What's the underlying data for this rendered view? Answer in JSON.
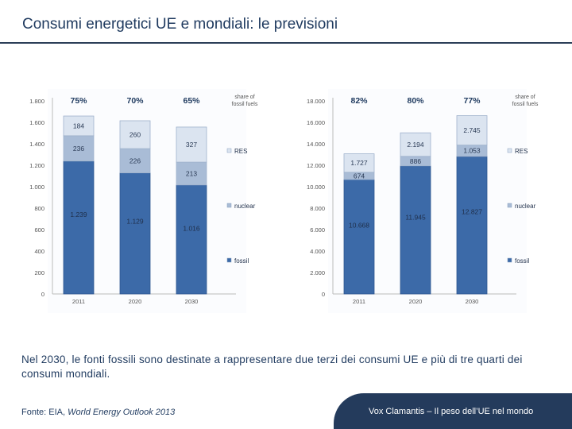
{
  "header": {
    "title": "Consumi energetici UE e mondiali: le previsioni"
  },
  "caption": "Nel 2030, le fonti fossili sono destinate a rappresentare due terzi dei consumi UE e più di tre quarti dei consumi mondiali.",
  "source": {
    "prefix": "Fonte: EIA, ",
    "italic": "World Energy Outlook 2013"
  },
  "footer": {
    "text": "Vox Clamantis – Il peso dell’UE nel mondo"
  },
  "colors": {
    "fossil": "#3c6aa8",
    "nuclear": "#a9bcd6",
    "res": "#dbe4f0",
    "title": "#1f3a5f",
    "footer_bg": "#243b5c"
  },
  "chart_data": [
    {
      "type": "bar",
      "stacked": true,
      "categories": [
        "2011",
        "2020",
        "2030"
      ],
      "series": [
        {
          "name": "fossil",
          "values": [
            1239,
            1129,
            1016
          ],
          "labels": [
            "1.239",
            "1.129",
            "1.016"
          ]
        },
        {
          "name": "nuclear",
          "values": [
            236,
            226,
            213
          ],
          "labels": [
            "236",
            "226",
            "213"
          ]
        },
        {
          "name": "RES",
          "values": [
            184,
            260,
            327
          ],
          "labels": [
            "184",
            "260",
            "327"
          ]
        }
      ],
      "share_title": [
        "share of",
        "fossil fuels"
      ],
      "share_of_fossil": [
        "75%",
        "70%",
        "65%"
      ],
      "yticks": [
        0,
        200,
        400,
        600,
        800,
        1000,
        1200,
        1400,
        1600,
        1800
      ],
      "ytick_labels": [
        "0",
        "200",
        "400",
        "600",
        "800",
        "1.000",
        "1.200",
        "1.400",
        "1.600",
        "1.800"
      ],
      "ylim": [
        0,
        1800
      ],
      "legend": [
        "RES",
        "nuclear",
        "fossil"
      ]
    },
    {
      "type": "bar",
      "stacked": true,
      "categories": [
        "2011",
        "2020",
        "2030"
      ],
      "series": [
        {
          "name": "fossil",
          "values": [
            10668,
            11945,
            12827
          ],
          "labels": [
            "10.668",
            "11.945",
            "12.827"
          ]
        },
        {
          "name": "nuclear",
          "values": [
            674,
            886,
            1053
          ],
          "labels": [
            "674",
            "886",
            "1.053"
          ]
        },
        {
          "name": "RES",
          "values": [
            1727,
            2194,
            2745
          ],
          "labels": [
            "1.727",
            "2.194",
            "2.745"
          ]
        }
      ],
      "share_title": [
        "share of",
        "fossil fuels"
      ],
      "share_of_fossil": [
        "82%",
        "80%",
        "77%"
      ],
      "yticks": [
        0,
        2000,
        4000,
        6000,
        8000,
        10000,
        12000,
        14000,
        16000,
        18000
      ],
      "ytick_labels": [
        "0",
        "2.000",
        "4.000",
        "6.000",
        "8.000",
        "10.000",
        "12.000",
        "14.000",
        "16.000",
        "18.000"
      ],
      "ylim": [
        0,
        18000
      ],
      "legend": [
        "RES",
        "nuclear",
        "fossil"
      ]
    }
  ]
}
